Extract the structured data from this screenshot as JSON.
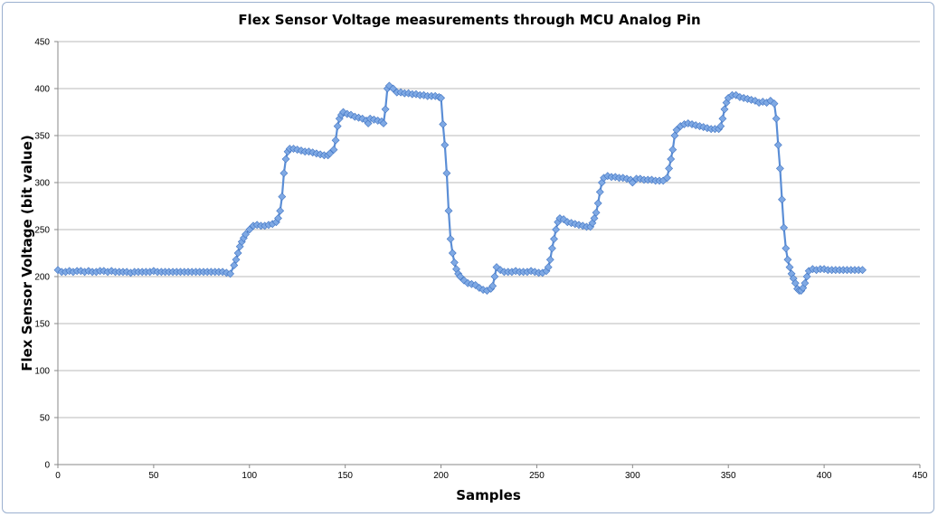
{
  "colors": {
    "series": "#5b8ed6",
    "marker_fill": "#7fa9e4",
    "marker_stroke": "#3f73c2",
    "frame": "#9bb0cf"
  },
  "chart_data": {
    "type": "line",
    "title": "Flex Sensor Voltage measurements through MCU Analog Pin",
    "xlabel": "Samples",
    "ylabel": "Flex Sensor Voltage (bit value)",
    "xlim": [
      0,
      450
    ],
    "ylim": [
      0,
      450
    ],
    "xticks": [
      0,
      50,
      100,
      150,
      200,
      250,
      300,
      350,
      400,
      450
    ],
    "yticks": [
      0,
      50,
      100,
      150,
      200,
      250,
      300,
      350,
      400,
      450
    ],
    "grid": true,
    "legend": "none",
    "marker": "diamond",
    "series": [
      {
        "values_xy": [
          [
            0,
            207
          ],
          [
            2,
            205
          ],
          [
            4,
            205
          ],
          [
            6,
            206
          ],
          [
            8,
            205
          ],
          [
            10,
            206
          ],
          [
            12,
            206
          ],
          [
            14,
            205
          ],
          [
            16,
            206
          ],
          [
            18,
            205
          ],
          [
            20,
            205
          ],
          [
            22,
            206
          ],
          [
            24,
            206
          ],
          [
            26,
            205
          ],
          [
            28,
            206
          ],
          [
            30,
            205
          ],
          [
            32,
            205
          ],
          [
            34,
            205
          ],
          [
            36,
            205
          ],
          [
            38,
            204
          ],
          [
            40,
            205
          ],
          [
            42,
            205
          ],
          [
            44,
            205
          ],
          [
            46,
            205
          ],
          [
            48,
            205
          ],
          [
            50,
            206
          ],
          [
            52,
            205
          ],
          [
            54,
            205
          ],
          [
            56,
            205
          ],
          [
            58,
            205
          ],
          [
            60,
            205
          ],
          [
            62,
            205
          ],
          [
            64,
            205
          ],
          [
            66,
            205
          ],
          [
            68,
            205
          ],
          [
            70,
            205
          ],
          [
            72,
            205
          ],
          [
            74,
            205
          ],
          [
            76,
            205
          ],
          [
            78,
            205
          ],
          [
            80,
            205
          ],
          [
            82,
            205
          ],
          [
            84,
            205
          ],
          [
            86,
            205
          ],
          [
            88,
            204
          ],
          [
            90,
            203
          ],
          [
            92,
            212
          ],
          [
            93,
            218
          ],
          [
            94,
            225
          ],
          [
            95,
            232
          ],
          [
            96,
            237
          ],
          [
            97,
            241
          ],
          [
            98,
            245
          ],
          [
            100,
            250
          ],
          [
            102,
            254
          ],
          [
            104,
            255
          ],
          [
            106,
            254
          ],
          [
            108,
            254
          ],
          [
            110,
            255
          ],
          [
            112,
            256
          ],
          [
            114,
            258
          ],
          [
            115,
            262
          ],
          [
            116,
            270
          ],
          [
            117,
            285
          ],
          [
            118,
            310
          ],
          [
            119,
            325
          ],
          [
            120,
            333
          ],
          [
            121,
            336
          ],
          [
            123,
            336
          ],
          [
            125,
            335
          ],
          [
            127,
            334
          ],
          [
            129,
            333
          ],
          [
            131,
            333
          ],
          [
            133,
            332
          ],
          [
            135,
            331
          ],
          [
            137,
            330
          ],
          [
            139,
            329
          ],
          [
            141,
            329
          ],
          [
            142,
            331
          ],
          [
            144,
            335
          ],
          [
            145,
            345
          ],
          [
            146,
            360
          ],
          [
            147,
            368
          ],
          [
            148,
            372
          ],
          [
            149,
            375
          ],
          [
            151,
            373
          ],
          [
            153,
            372
          ],
          [
            155,
            370
          ],
          [
            157,
            369
          ],
          [
            159,
            368
          ],
          [
            161,
            366
          ],
          [
            162,
            363
          ],
          [
            163,
            368
          ],
          [
            165,
            367
          ],
          [
            167,
            366
          ],
          [
            169,
            365
          ],
          [
            170,
            363
          ],
          [
            171,
            378
          ],
          [
            172,
            400
          ],
          [
            173,
            403
          ],
          [
            175,
            400
          ],
          [
            177,
            396
          ],
          [
            179,
            396
          ],
          [
            181,
            395
          ],
          [
            183,
            395
          ],
          [
            185,
            394
          ],
          [
            187,
            394
          ],
          [
            189,
            393
          ],
          [
            191,
            393
          ],
          [
            193,
            392
          ],
          [
            195,
            392
          ],
          [
            197,
            392
          ],
          [
            199,
            391
          ],
          [
            200,
            390
          ],
          [
            201,
            362
          ],
          [
            202,
            340
          ],
          [
            203,
            310
          ],
          [
            204,
            270
          ],
          [
            205,
            240
          ],
          [
            206,
            225
          ],
          [
            207,
            215
          ],
          [
            208,
            208
          ],
          [
            209,
            203
          ],
          [
            210,
            200
          ],
          [
            212,
            196
          ],
          [
            214,
            193
          ],
          [
            216,
            192
          ],
          [
            218,
            191
          ],
          [
            220,
            188
          ],
          [
            222,
            186
          ],
          [
            224,
            185
          ],
          [
            226,
            187
          ],
          [
            227,
            190
          ],
          [
            228,
            200
          ],
          [
            229,
            210
          ],
          [
            231,
            207
          ],
          [
            233,
            205
          ],
          [
            235,
            205
          ],
          [
            237,
            205
          ],
          [
            239,
            206
          ],
          [
            241,
            205
          ],
          [
            243,
            205
          ],
          [
            245,
            205
          ],
          [
            247,
            206
          ],
          [
            249,
            205
          ],
          [
            251,
            204
          ],
          [
            253,
            204
          ],
          [
            255,
            206
          ],
          [
            256,
            210
          ],
          [
            257,
            218
          ],
          [
            258,
            230
          ],
          [
            259,
            240
          ],
          [
            260,
            250
          ],
          [
            261,
            258
          ],
          [
            262,
            262
          ],
          [
            264,
            261
          ],
          [
            266,
            258
          ],
          [
            268,
            257
          ],
          [
            270,
            256
          ],
          [
            272,
            255
          ],
          [
            274,
            254
          ],
          [
            276,
            253
          ],
          [
            278,
            253
          ],
          [
            279,
            257
          ],
          [
            280,
            262
          ],
          [
            281,
            268
          ],
          [
            282,
            278
          ],
          [
            283,
            290
          ],
          [
            284,
            300
          ],
          [
            285,
            305
          ],
          [
            287,
            307
          ],
          [
            289,
            306
          ],
          [
            291,
            306
          ],
          [
            293,
            305
          ],
          [
            295,
            305
          ],
          [
            297,
            304
          ],
          [
            299,
            303
          ],
          [
            300,
            300
          ],
          [
            302,
            304
          ],
          [
            304,
            304
          ],
          [
            306,
            303
          ],
          [
            308,
            303
          ],
          [
            310,
            303
          ],
          [
            312,
            302
          ],
          [
            314,
            302
          ],
          [
            316,
            302
          ],
          [
            318,
            305
          ],
          [
            319,
            315
          ],
          [
            320,
            325
          ],
          [
            321,
            335
          ],
          [
            322,
            350
          ],
          [
            323,
            356
          ],
          [
            325,
            360
          ],
          [
            327,
            362
          ],
          [
            329,
            363
          ],
          [
            331,
            362
          ],
          [
            333,
            361
          ],
          [
            335,
            360
          ],
          [
            337,
            359
          ],
          [
            339,
            358
          ],
          [
            341,
            357
          ],
          [
            343,
            357
          ],
          [
            345,
            357
          ],
          [
            346,
            360
          ],
          [
            347,
            368
          ],
          [
            348,
            378
          ],
          [
            349,
            385
          ],
          [
            350,
            390
          ],
          [
            352,
            393
          ],
          [
            354,
            393
          ],
          [
            356,
            391
          ],
          [
            358,
            390
          ],
          [
            360,
            389
          ],
          [
            362,
            388
          ],
          [
            364,
            387
          ],
          [
            366,
            385
          ],
          [
            368,
            386
          ],
          [
            370,
            385
          ],
          [
            372,
            387
          ],
          [
            374,
            384
          ],
          [
            375,
            368
          ],
          [
            376,
            340
          ],
          [
            377,
            315
          ],
          [
            378,
            282
          ],
          [
            379,
            252
          ],
          [
            380,
            230
          ],
          [
            381,
            218
          ],
          [
            382,
            210
          ],
          [
            383,
            203
          ],
          [
            384,
            198
          ],
          [
            385,
            193
          ],
          [
            386,
            187
          ],
          [
            387,
            185
          ],
          [
            388,
            185
          ],
          [
            389,
            188
          ],
          [
            390,
            193
          ],
          [
            391,
            200
          ],
          [
            392,
            206
          ],
          [
            394,
            208
          ],
          [
            396,
            207
          ],
          [
            398,
            208
          ],
          [
            400,
            208
          ],
          [
            402,
            207
          ],
          [
            404,
            207
          ],
          [
            406,
            207
          ],
          [
            408,
            207
          ],
          [
            410,
            207
          ],
          [
            412,
            207
          ],
          [
            414,
            207
          ],
          [
            416,
            207
          ],
          [
            418,
            207
          ],
          [
            420,
            207
          ]
        ]
      }
    ]
  }
}
